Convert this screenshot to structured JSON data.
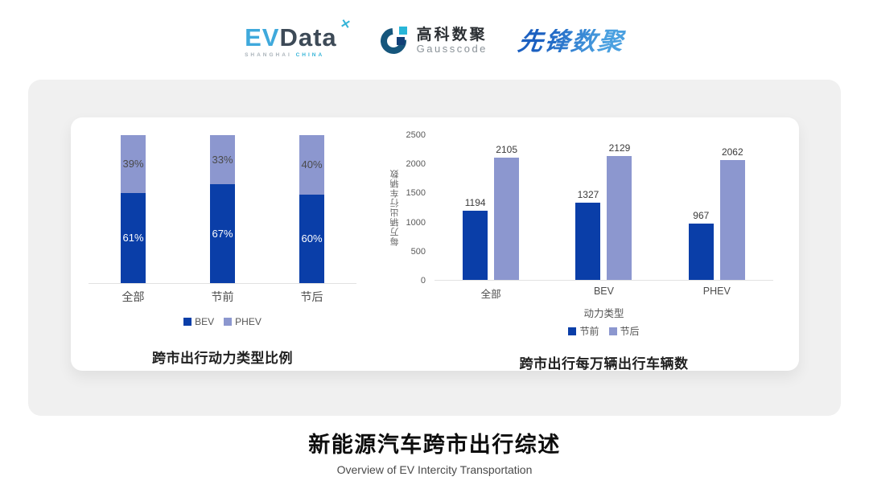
{
  "header": {
    "evdata": {
      "ev": "EV",
      "data": "Data",
      "mark": "✕",
      "sub1": "SHANGHAI",
      "sub2": "CHINA"
    },
    "gausscode": {
      "cn": "高科数聚",
      "en": "Gausscode"
    },
    "xianfeng": {
      "text": "先锋数聚"
    }
  },
  "colors": {
    "series_dark_blue": "#0a3ea8",
    "series_light_blue": "#8c97cf",
    "panel_gray": "#f0f0f0",
    "evdata_blue": "#3fa9dc",
    "evdata_slate": "#3d4a57",
    "gausscode_teal": "#16567c",
    "gausscode_cyan": "#29b6d8",
    "xianfeng_blue": "#2a79cf"
  },
  "chart_data": [
    {
      "type": "bar",
      "variant": "stacked-percent",
      "title": "跨市出行动力类型比例",
      "categories": [
        "全部",
        "节前",
        "节后"
      ],
      "series": [
        {
          "name": "BEV",
          "values": [
            61,
            67,
            60
          ],
          "unit": "%",
          "color": "#0a3ea8"
        },
        {
          "name": "PHEV",
          "values": [
            39,
            33,
            40
          ],
          "unit": "%",
          "color": "#8c97cf"
        }
      ],
      "ylim": [
        0,
        100
      ],
      "grid": false,
      "legend_position": "bottom"
    },
    {
      "type": "bar",
      "variant": "grouped",
      "title": "跨市出行每万辆出行车辆数",
      "categories": [
        "全部",
        "BEV",
        "PHEV"
      ],
      "xlabel": "动力类型",
      "ylabel": "每万辆出行车辆数",
      "ylim": [
        0,
        2500
      ],
      "yticks": [
        0,
        500,
        1000,
        1500,
        2000,
        2500
      ],
      "grid": false,
      "legend_position": "bottom",
      "series": [
        {
          "name": "节前",
          "values": [
            1194,
            1327,
            967
          ],
          "color": "#0a3ea8"
        },
        {
          "name": "节后",
          "values": [
            2105,
            2129,
            2062
          ],
          "color": "#8c97cf"
        }
      ]
    }
  ],
  "footer": {
    "title": "新能源汽车跨市出行综述",
    "subtitle": "Overview of EV Intercity Transportation"
  }
}
